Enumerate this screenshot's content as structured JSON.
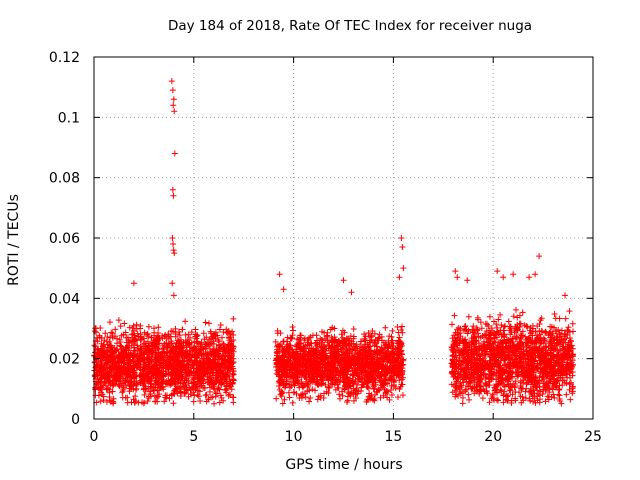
{
  "chart_data": {
    "type": "scatter",
    "title": "Day 184 of 2018, Rate Of TEC Index for receiver nuga",
    "xlabel": "GPS time / hours",
    "ylabel": "ROTI / TECUs",
    "xlim": [
      0,
      25
    ],
    "ylim": [
      0,
      0.12
    ],
    "xticks": [
      0,
      5,
      10,
      15,
      20,
      25
    ],
    "yticks": [
      0,
      0.02,
      0.04,
      0.06,
      0.08,
      0.1,
      0.12
    ],
    "xtick_labels": [
      "0",
      "5",
      "10",
      "15",
      "20",
      "25"
    ],
    "ytick_labels": [
      "0",
      "0.02",
      "0.04",
      "0.06",
      "0.08",
      "0.1",
      "0.12"
    ],
    "grid": true,
    "marker": "+",
    "color": "#ff0000",
    "segments": [
      {
        "x_start": 0.0,
        "x_end": 7.0,
        "y_low": 0.007,
        "y_high": 0.033,
        "y_center": 0.018
      },
      {
        "x_start": 9.1,
        "x_end": 15.5,
        "y_low": 0.007,
        "y_high": 0.031,
        "y_center": 0.018
      },
      {
        "x_start": 17.9,
        "x_end": 24.0,
        "y_low": 0.007,
        "y_high": 0.036,
        "y_center": 0.019
      }
    ],
    "notable_points": [
      {
        "x": 2.0,
        "y": 0.045
      },
      {
        "x": 3.9,
        "y": 0.112
      },
      {
        "x": 3.95,
        "y": 0.109
      },
      {
        "x": 4.0,
        "y": 0.106
      },
      {
        "x": 3.97,
        "y": 0.104
      },
      {
        "x": 4.02,
        "y": 0.102
      },
      {
        "x": 4.05,
        "y": 0.088
      },
      {
        "x": 3.95,
        "y": 0.076
      },
      {
        "x": 3.98,
        "y": 0.074
      },
      {
        "x": 3.93,
        "y": 0.06
      },
      {
        "x": 3.96,
        "y": 0.058
      },
      {
        "x": 3.99,
        "y": 0.056
      },
      {
        "x": 4.02,
        "y": 0.055
      },
      {
        "x": 3.92,
        "y": 0.045
      },
      {
        "x": 4.0,
        "y": 0.041
      },
      {
        "x": 9.3,
        "y": 0.048
      },
      {
        "x": 9.5,
        "y": 0.043
      },
      {
        "x": 12.5,
        "y": 0.046
      },
      {
        "x": 12.9,
        "y": 0.042
      },
      {
        "x": 15.3,
        "y": 0.047
      },
      {
        "x": 15.4,
        "y": 0.06
      },
      {
        "x": 15.45,
        "y": 0.057
      },
      {
        "x": 15.5,
        "y": 0.05
      },
      {
        "x": 18.1,
        "y": 0.049
      },
      {
        "x": 18.2,
        "y": 0.047
      },
      {
        "x": 18.7,
        "y": 0.046
      },
      {
        "x": 20.2,
        "y": 0.049
      },
      {
        "x": 20.5,
        "y": 0.047
      },
      {
        "x": 21.0,
        "y": 0.048
      },
      {
        "x": 21.8,
        "y": 0.047
      },
      {
        "x": 22.1,
        "y": 0.048
      },
      {
        "x": 22.3,
        "y": 0.054
      },
      {
        "x": 23.6,
        "y": 0.041
      }
    ]
  }
}
